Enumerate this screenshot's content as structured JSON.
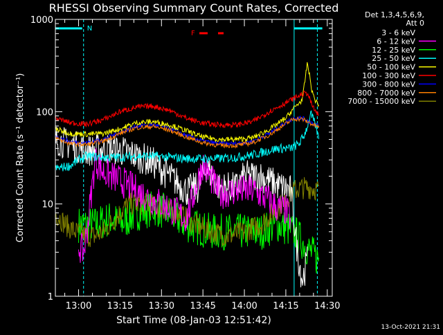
{
  "chart_data": {
    "type": "line",
    "title": "RHESSI Observing Summary Count Rates, Corrected",
    "xlabel": "Start Time (08-Jan-03 12:51:42)",
    "ylabel": "Corrected Count Rate (s⁻¹ detector⁻¹)",
    "y_scale": "log",
    "ylim": [
      1,
      1000
    ],
    "x_range_minutes": [
      12.5,
      41.0
    ],
    "x_ticks": [
      {
        "label": "13:00",
        "t": 13.0
      },
      {
        "label": "13:15",
        "t": 13.25
      },
      {
        "label": "13:30",
        "t": 13.5
      },
      {
        "label": "13:45",
        "t": 13.75
      },
      {
        "label": "14:00",
        "t": 14.0
      },
      {
        "label": "14:15",
        "t": 14.25
      },
      {
        "label": "14:30",
        "t": 14.5
      }
    ],
    "y_ticks": [
      {
        "label": "1",
        "v": 1
      },
      {
        "label": "10",
        "v": 10
      },
      {
        "label": "100",
        "v": 100
      },
      {
        "label": "1000",
        "v": 1000
      }
    ],
    "legend_header": [
      "Det 1,3,4,5,6,9,",
      "Att 0"
    ],
    "legend_position": "right",
    "flag_labels": {
      "night": "N",
      "flare": "F"
    },
    "footer_date": "13-Oct-2021 21:31",
    "series": [
      {
        "name": "3 - 6 keV",
        "color": "#ffffff",
        "legend_color": "#000000",
        "points": [
          [
            12.86,
            50
          ],
          [
            13.05,
            38
          ],
          [
            13.2,
            40
          ],
          [
            13.3,
            36
          ],
          [
            13.45,
            28
          ],
          [
            13.55,
            20
          ],
          [
            13.65,
            14
          ],
          [
            13.72,
            15
          ],
          [
            13.77,
            25
          ],
          [
            13.85,
            15
          ],
          [
            13.95,
            15
          ],
          [
            14.0,
            20
          ],
          [
            14.1,
            20
          ],
          [
            14.2,
            16
          ],
          [
            14.28,
            14
          ],
          [
            14.32,
            3
          ],
          [
            14.35,
            1.5
          ],
          [
            14.38,
            2.5
          ]
        ]
      },
      {
        "name": "6 - 12 keV",
        "color": "#ff00ff",
        "points": [
          [
            13.0,
            3.5
          ],
          [
            13.03,
            3.0
          ],
          [
            13.05,
            5
          ],
          [
            13.1,
            30
          ],
          [
            13.15,
            22
          ],
          [
            13.25,
            18
          ],
          [
            13.35,
            14
          ],
          [
            13.45,
            11
          ],
          [
            13.55,
            9
          ],
          [
            13.65,
            7
          ],
          [
            13.75,
            27
          ],
          [
            13.85,
            13
          ],
          [
            13.95,
            14
          ],
          [
            14.05,
            14
          ],
          [
            14.15,
            11
          ],
          [
            14.2,
            9
          ],
          [
            14.25,
            8.5
          ],
          [
            14.28,
            7
          ]
        ]
      },
      {
        "name": "12 - 25 keV",
        "color": "#00ff00",
        "points": [
          [
            13.0,
            6
          ],
          [
            13.1,
            6
          ],
          [
            13.2,
            7
          ],
          [
            13.25,
            6
          ],
          [
            13.35,
            8
          ],
          [
            13.45,
            9
          ],
          [
            13.55,
            8
          ],
          [
            13.65,
            6
          ],
          [
            13.8,
            5
          ],
          [
            13.9,
            5
          ],
          [
            14.0,
            5
          ],
          [
            14.1,
            5
          ],
          [
            14.2,
            6
          ],
          [
            14.3,
            5
          ],
          [
            14.4,
            3
          ],
          [
            14.45,
            2.5
          ]
        ]
      },
      {
        "name": "25 - 50 keV",
        "color": "#00ffff",
        "points": [
          [
            12.86,
            24
          ],
          [
            12.95,
            26
          ],
          [
            13.0,
            30
          ],
          [
            13.05,
            33
          ],
          [
            13.15,
            32
          ],
          [
            13.25,
            32
          ],
          [
            13.35,
            33
          ],
          [
            13.45,
            33
          ],
          [
            13.55,
            32
          ],
          [
            13.65,
            31
          ],
          [
            13.75,
            31
          ],
          [
            13.85,
            31
          ],
          [
            13.95,
            32
          ],
          [
            14.05,
            34
          ],
          [
            14.15,
            38
          ],
          [
            14.2,
            40
          ],
          [
            14.28,
            40
          ],
          [
            14.33,
            45
          ],
          [
            14.36,
            55
          ],
          [
            14.38,
            70
          ],
          [
            14.4,
            95
          ],
          [
            14.43,
            70
          ],
          [
            14.45,
            50
          ]
        ]
      },
      {
        "name": "50 - 100 keV",
        "color": "#ffff00",
        "points": [
          [
            12.86,
            65
          ],
          [
            12.95,
            58
          ],
          [
            13.05,
            57
          ],
          [
            13.15,
            58
          ],
          [
            13.25,
            65
          ],
          [
            13.35,
            76
          ],
          [
            13.45,
            78
          ],
          [
            13.55,
            72
          ],
          [
            13.65,
            62
          ],
          [
            13.75,
            53
          ],
          [
            13.85,
            50
          ],
          [
            13.95,
            50
          ],
          [
            14.05,
            52
          ],
          [
            14.15,
            64
          ],
          [
            14.25,
            85
          ],
          [
            14.3,
            110
          ],
          [
            14.35,
            135
          ],
          [
            14.38,
            340
          ],
          [
            14.41,
            160
          ],
          [
            14.43,
            130
          ],
          [
            14.45,
            120
          ]
        ]
      },
      {
        "name": "100 - 300 keV",
        "color": "#ff0000",
        "points": [
          [
            12.86,
            85
          ],
          [
            12.95,
            76
          ],
          [
            13.05,
            73
          ],
          [
            13.15,
            82
          ],
          [
            13.25,
            100
          ],
          [
            13.35,
            112
          ],
          [
            13.45,
            115
          ],
          [
            13.55,
            103
          ],
          [
            13.65,
            85
          ],
          [
            13.75,
            75
          ],
          [
            13.85,
            72
          ],
          [
            13.95,
            72
          ],
          [
            14.05,
            78
          ],
          [
            14.15,
            100
          ],
          [
            14.25,
            125
          ],
          [
            14.3,
            140
          ],
          [
            14.35,
            155
          ],
          [
            14.38,
            160
          ],
          [
            14.41,
            115
          ],
          [
            14.43,
            100
          ],
          [
            14.45,
            90
          ]
        ]
      },
      {
        "name": "300 - 800 keV",
        "color": "#0000ff",
        "points": [
          [
            12.86,
            54
          ],
          [
            12.95,
            47
          ],
          [
            13.05,
            46
          ],
          [
            13.15,
            50
          ],
          [
            13.25,
            60
          ],
          [
            13.35,
            70
          ],
          [
            13.45,
            72
          ],
          [
            13.55,
            66
          ],
          [
            13.65,
            55
          ],
          [
            13.75,
            48
          ],
          [
            13.85,
            45
          ],
          [
            13.95,
            45
          ],
          [
            14.05,
            48
          ],
          [
            14.15,
            58
          ],
          [
            14.25,
            76
          ],
          [
            14.3,
            86
          ],
          [
            14.35,
            85
          ],
          [
            14.38,
            80
          ],
          [
            14.41,
            75
          ],
          [
            14.43,
            72
          ],
          [
            14.45,
            70
          ]
        ]
      },
      {
        "name": "800 - 7000 keV",
        "color": "#ff8000",
        "points": [
          [
            12.86,
            52
          ],
          [
            12.95,
            45
          ],
          [
            13.05,
            44
          ],
          [
            13.15,
            48
          ],
          [
            13.25,
            58
          ],
          [
            13.35,
            67
          ],
          [
            13.45,
            69
          ],
          [
            13.55,
            63
          ],
          [
            13.65,
            53
          ],
          [
            13.75,
            46
          ],
          [
            13.85,
            43
          ],
          [
            13.95,
            43
          ],
          [
            14.05,
            46
          ],
          [
            14.15,
            56
          ],
          [
            14.25,
            74
          ],
          [
            14.3,
            84
          ],
          [
            14.35,
            83
          ],
          [
            14.38,
            78
          ],
          [
            14.41,
            73
          ],
          [
            14.43,
            70
          ],
          [
            14.45,
            68
          ]
        ]
      },
      {
        "name": "7000 - 15000 keV",
        "color": "#808000",
        "points": [
          [
            12.86,
            8
          ],
          [
            12.92,
            6
          ],
          [
            12.98,
            5
          ],
          [
            13.05,
            4.5
          ],
          [
            13.1,
            4.5
          ],
          [
            13.15,
            5
          ],
          [
            13.25,
            8
          ],
          [
            13.3,
            10
          ],
          [
            13.4,
            10
          ],
          [
            13.5,
            9
          ],
          [
            13.6,
            8
          ],
          [
            13.7,
            6
          ],
          [
            13.8,
            5
          ],
          [
            13.9,
            4.5
          ],
          [
            14.0,
            5
          ],
          [
            14.1,
            6
          ],
          [
            14.2,
            9
          ],
          [
            14.3,
            14
          ],
          [
            14.35,
            15
          ],
          [
            14.4,
            15
          ],
          [
            14.45,
            14
          ]
        ]
      }
    ]
  }
}
